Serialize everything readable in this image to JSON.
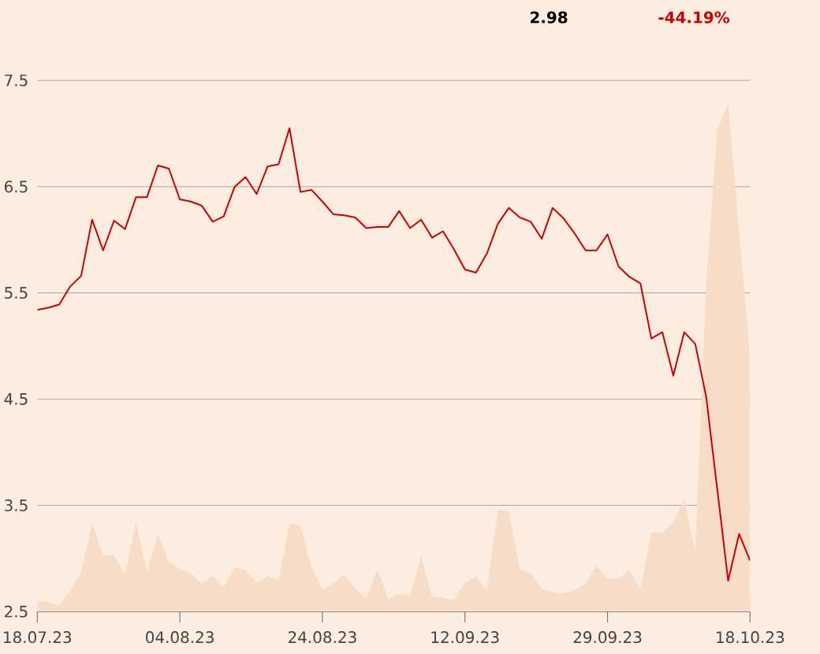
{
  "chart_data": {
    "type": "line",
    "annotations": [
      "2.98",
      "-44.19%"
    ],
    "categories": [
      "18.07.23",
      null,
      null,
      null,
      null,
      null,
      null,
      null,
      null,
      null,
      null,
      null,
      null,
      "04.08.23",
      null,
      null,
      null,
      null,
      null,
      null,
      null,
      null,
      null,
      null,
      null,
      null,
      "24.08.23",
      null,
      null,
      null,
      null,
      null,
      null,
      null,
      null,
      null,
      null,
      null,
      null,
      "12.09.23",
      null,
      null,
      null,
      null,
      null,
      null,
      null,
      null,
      null,
      null,
      null,
      null,
      "29.09.23",
      null,
      null,
      null,
      null,
      null,
      null,
      null,
      null,
      null,
      null,
      null,
      null,
      "18.10.23"
    ],
    "series": [
      {
        "type": "area",
        "color": "#f7dcc7",
        "values": [
          2.6,
          2.59,
          2.56,
          2.7,
          2.87,
          3.33,
          3.03,
          3.03,
          2.85,
          3.34,
          2.87,
          3.22,
          2.97,
          2.9,
          2.86,
          2.76,
          2.84,
          2.73,
          2.92,
          2.89,
          2.77,
          2.83,
          2.8,
          3.33,
          3.31,
          2.92,
          2.71,
          2.76,
          2.85,
          2.72,
          2.61,
          2.9,
          2.62,
          2.67,
          2.65,
          3.02,
          2.64,
          2.63,
          2.6,
          2.77,
          2.83,
          2.7,
          3.46,
          3.44,
          2.9,
          2.86,
          2.71,
          2.68,
          2.67,
          2.7,
          2.76,
          2.93,
          2.81,
          2.81,
          2.89,
          2.71,
          3.24,
          3.24,
          3.34,
          3.56,
          3.06,
          5.59,
          7.03,
          7.28,
          6.09,
          4.9
        ]
      },
      {
        "color": "#cc0000",
        "values": [
          5.34,
          5.36,
          5.39,
          5.56,
          5.66,
          6.19,
          5.9,
          6.18,
          6.1,
          6.4,
          6.4,
          6.7,
          6.67,
          6.38,
          6.36,
          6.32,
          6.17,
          6.22,
          6.5,
          6.59,
          6.43,
          6.69,
          6.71,
          7.05,
          6.45,
          6.47,
          6.36,
          6.24,
          6.23,
          6.21,
          6.11,
          6.12,
          6.12,
          6.27,
          6.11,
          6.19,
          6.02,
          6.08,
          5.91,
          5.72,
          5.69,
          5.87,
          6.15,
          6.3,
          6.21,
          6.17,
          6.01,
          6.3,
          6.2,
          6.06,
          5.9,
          5.9,
          6.05,
          5.75,
          5.65,
          5.59,
          5.07,
          5.13,
          4.72,
          5.13,
          5.02,
          4.52,
          3.66,
          2.79,
          3.23,
          2.98
        ]
      }
    ],
    "ylim": [
      2.5,
      7.5
    ],
    "yticks": [
      2.5,
      3.5,
      4.5,
      5.5,
      6.5,
      7.5
    ],
    "grid": "y",
    "marker": "none",
    "line_style": "solid"
  }
}
